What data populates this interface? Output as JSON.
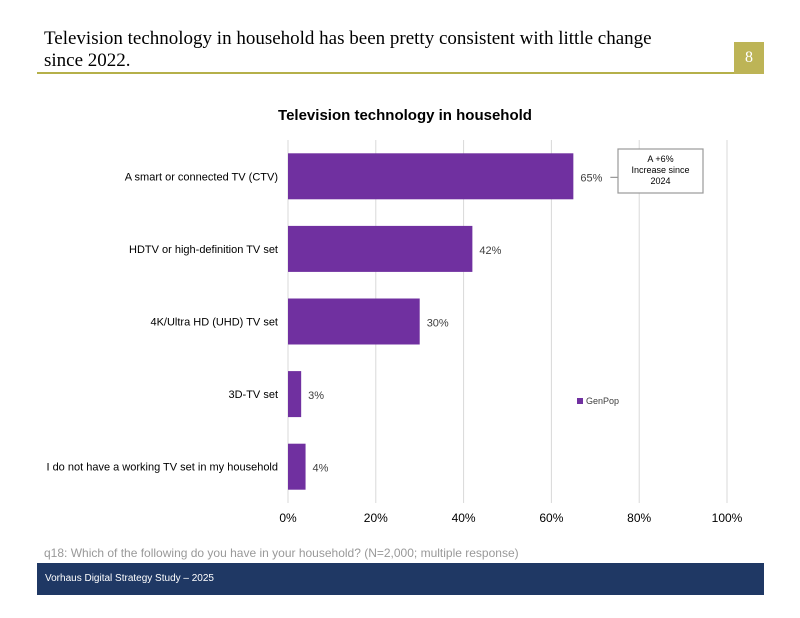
{
  "slide": {
    "title_line1": "Television technology in household has been pretty consistent with little change",
    "title_line2": "since 2022.",
    "page_number": "8",
    "footnote": "q18: Which of the following do you have in your household? (N=2,000; multiple response)",
    "footer": "Vorhaus Digital Strategy Study – 2025"
  },
  "chart_data": {
    "type": "bar",
    "orientation": "horizontal",
    "title": "Television technology in household",
    "categories": [
      "A smart or connected TV (CTV)",
      "HDTV or high-definition TV set",
      "4K/Ultra HD (UHD) TV set",
      "3D-TV set",
      "I do not have a working TV set in my household"
    ],
    "series": [
      {
        "name": "GenPop",
        "values": [
          65,
          42,
          30,
          3,
          4
        ],
        "color": "#7030a0"
      }
    ],
    "data_labels": [
      "65%",
      "42%",
      "30%",
      "3%",
      "4%"
    ],
    "x_ticks": [
      "0%",
      "20%",
      "40%",
      "60%",
      "80%",
      "100%"
    ],
    "xlim": [
      0,
      100
    ],
    "grid": true,
    "legend": {
      "position": "right",
      "label": "GenPop"
    },
    "annotation": {
      "lines": [
        "A +6%",
        "Increase since",
        "2024"
      ],
      "target": "A smart or connected TV (CTV)"
    },
    "grid_color": "#d9d9d9"
  }
}
